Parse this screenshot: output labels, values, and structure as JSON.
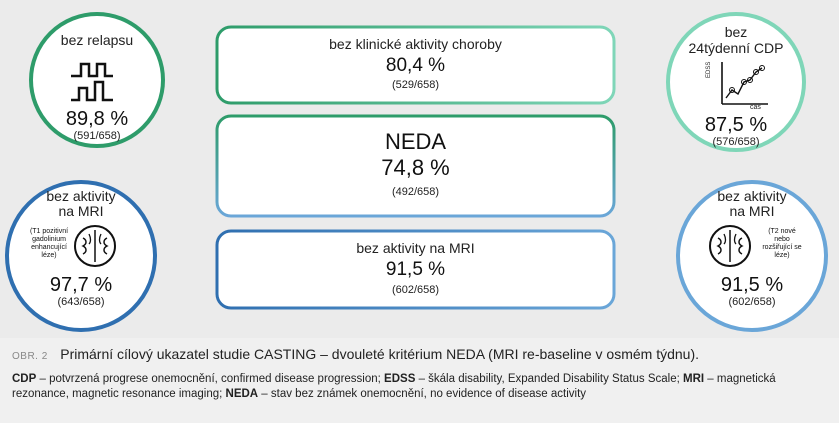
{
  "circles": {
    "relapse": {
      "title": "bez relapsu",
      "value": "89,8 %",
      "count": "(591/658)",
      "color": "#2e9c6a"
    },
    "cdp": {
      "title_line1": "bez",
      "title_line2": "24týdenní CDP",
      "axis_y": "EDSS",
      "axis_x": "čas",
      "value": "87,5 %",
      "count": "(576/658)",
      "color": "#7fd6b8"
    },
    "mri_t1": {
      "title_line1": "bez aktivity",
      "title_line2": "na MRI",
      "side_note": [
        "(T1 pozitivní",
        "gadolinium",
        "enhancující",
        "léze)"
      ],
      "value": "97,7 %",
      "count": "(643/658)",
      "color": "#2f6fb0"
    },
    "mri_t2": {
      "title_line1": "bez aktivity",
      "title_line2": "na MRI",
      "side_note": [
        "(T2 nové",
        "nebo",
        "rozšiřující se",
        "léze)"
      ],
      "value": "91,5 %",
      "count": "(602/658)",
      "color": "#6aa6d8"
    }
  },
  "boxes": {
    "clinical": {
      "title": "bez klinické aktivity choroby",
      "value": "80,4 %",
      "count": "(529/658)"
    },
    "neda": {
      "title": "NEDA",
      "value": "74,8 %",
      "count": "(492/658)"
    },
    "mri": {
      "title": "bez aktivity na MRI",
      "value": "91,5 %",
      "count": "(602/658)"
    }
  },
  "caption": {
    "number": "OBR. 2",
    "title": "Primární cílový ukazatel studie CASTING – dvouleté kritérium NEDA (MRI re-baseline v osmém týdnu).",
    "abbrev": [
      {
        "term": "CDP",
        "def": " – potvrzená progrese onemocnění, confirmed disease progression; "
      },
      {
        "term": "EDSS",
        "def": " – škála disability, Expanded Disability Status Scale; "
      },
      {
        "term": "MRI",
        "def": " – magnetická rezonance, magnetic resonance imaging; "
      },
      {
        "term": "NEDA",
        "def": " – stav bez známek onemocnění, no evidence of disease activity"
      }
    ]
  }
}
